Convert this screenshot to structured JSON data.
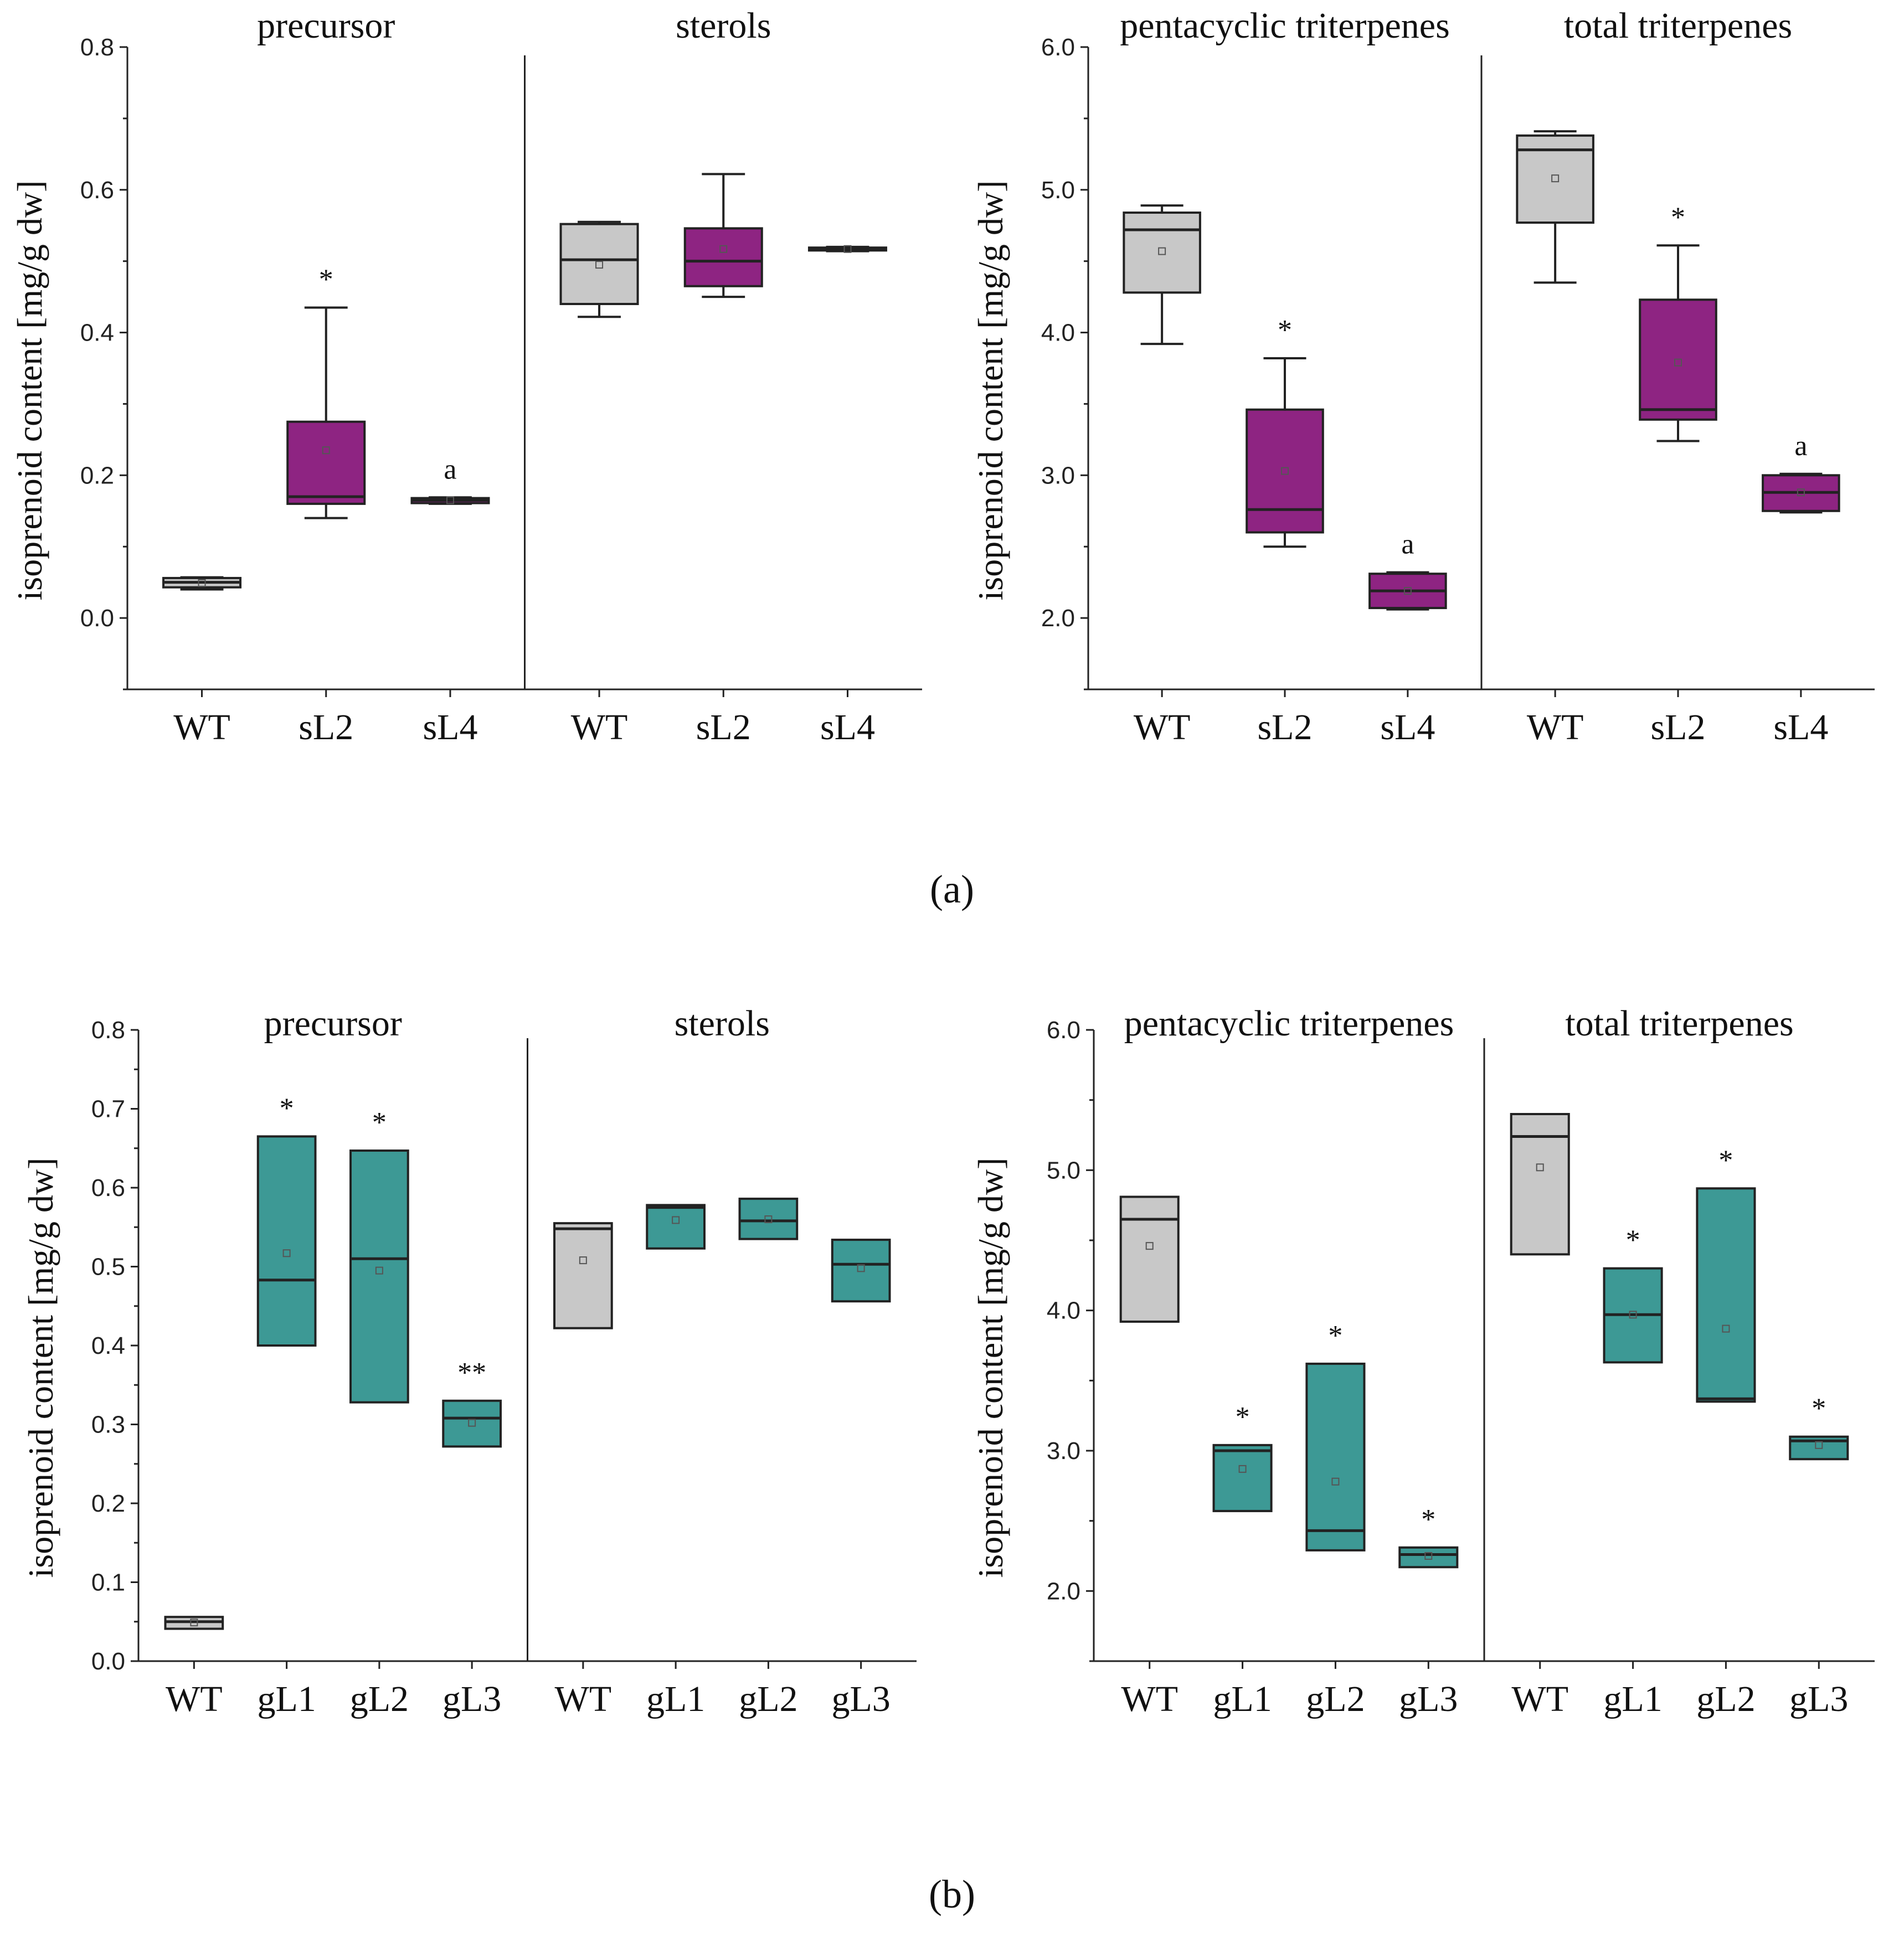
{
  "colors": {
    "wt": "#c8c8c8",
    "s": "#8e2482",
    "g": "#3d9995",
    "axis": "#222222"
  },
  "figure_labels": {
    "a": "(a)",
    "b": "(b)"
  },
  "chart_data": [
    {
      "type": "box",
      "id": "a-left",
      "ylabel": "isoprenoid content [mg/g dw]",
      "ylim": [
        -0.1,
        0.8
      ],
      "yticks": [
        "0.0",
        "0.2",
        "0.4",
        "0.6",
        "0.8"
      ],
      "ytick_values": [
        0.0,
        0.2,
        0.4,
        0.6,
        0.8
      ],
      "groups": [
        {
          "title": "precursor",
          "items": [
            {
              "label": "WT",
              "color": "wt",
              "whislo": 0.04,
              "q1": 0.043,
              "med": 0.05,
              "q3": 0.056,
              "whishi": 0.057,
              "mean": 0.049,
              "sig": ""
            },
            {
              "label": "sL2",
              "color": "s",
              "whislo": 0.14,
              "q1": 0.16,
              "med": 0.17,
              "q3": 0.275,
              "whishi": 0.435,
              "mean": 0.235,
              "sig": "*"
            },
            {
              "label": "sL4",
              "color": "s",
              "whislo": 0.16,
              "q1": 0.161,
              "med": 0.165,
              "q3": 0.168,
              "whishi": 0.169,
              "mean": 0.165,
              "sig": "a"
            }
          ]
        },
        {
          "title": "sterols",
          "items": [
            {
              "label": "WT",
              "color": "wt",
              "whislo": 0.422,
              "q1": 0.44,
              "med": 0.502,
              "q3": 0.552,
              "whishi": 0.555,
              "mean": 0.495,
              "sig": ""
            },
            {
              "label": "sL2",
              "color": "s",
              "whislo": 0.45,
              "q1": 0.465,
              "med": 0.5,
              "q3": 0.546,
              "whishi": 0.622,
              "mean": 0.517,
              "sig": ""
            },
            {
              "label": "sL4",
              "color": "s",
              "whislo": 0.514,
              "q1": 0.515,
              "med": 0.517,
              "q3": 0.519,
              "whishi": 0.52,
              "mean": 0.517,
              "sig": ""
            }
          ]
        }
      ]
    },
    {
      "type": "box",
      "id": "a-right",
      "ylabel": "isoprenoid content [mg/g dw]",
      "ylim": [
        1.5,
        6.0
      ],
      "yticks": [
        "2.0",
        "3.0",
        "4.0",
        "5.0",
        "6.0"
      ],
      "ytick_values": [
        2.0,
        3.0,
        4.0,
        5.0,
        6.0
      ],
      "groups": [
        {
          "title": "pentacyclic triterpenes",
          "items": [
            {
              "label": "WT",
              "color": "wt",
              "whislo": 3.92,
              "q1": 4.28,
              "med": 4.72,
              "q3": 4.84,
              "whishi": 4.89,
              "mean": 4.57,
              "sig": ""
            },
            {
              "label": "sL2",
              "color": "s",
              "whislo": 2.5,
              "q1": 2.6,
              "med": 2.76,
              "q3": 3.46,
              "whishi": 3.82,
              "mean": 3.03,
              "sig": "*"
            },
            {
              "label": "sL4",
              "color": "s",
              "whislo": 2.06,
              "q1": 2.07,
              "med": 2.19,
              "q3": 2.31,
              "whishi": 2.32,
              "mean": 2.19,
              "sig": "a"
            }
          ]
        },
        {
          "title": "total triterpenes",
          "items": [
            {
              "label": "WT",
              "color": "wt",
              "whislo": 4.35,
              "q1": 4.77,
              "med": 5.28,
              "q3": 5.38,
              "whishi": 5.41,
              "mean": 5.08,
              "sig": ""
            },
            {
              "label": "sL2",
              "color": "s",
              "whislo": 3.24,
              "q1": 3.39,
              "med": 3.46,
              "q3": 4.23,
              "whishi": 4.61,
              "mean": 3.79,
              "sig": "*"
            },
            {
              "label": "sL4",
              "color": "s",
              "whislo": 2.74,
              "q1": 2.75,
              "med": 2.88,
              "q3": 3.0,
              "whishi": 3.01,
              "mean": 2.88,
              "sig": "a"
            }
          ]
        }
      ]
    },
    {
      "type": "box",
      "id": "b-left",
      "ylabel": "isoprenoid content [mg/g dw]",
      "ylim": [
        0.0,
        0.8
      ],
      "yticks": [
        "0.0",
        "0.1",
        "0.2",
        "0.3",
        "0.4",
        "0.5",
        "0.6",
        "0.7",
        "0.8"
      ],
      "ytick_values": [
        0.0,
        0.1,
        0.2,
        0.3,
        0.4,
        0.5,
        0.6,
        0.7,
        0.8
      ],
      "groups": [
        {
          "title": "precursor",
          "items": [
            {
              "label": "WT",
              "color": "wt",
              "whislo": 0.041,
              "q1": 0.041,
              "med": 0.05,
              "q3": 0.056,
              "whishi": 0.056,
              "mean": 0.049,
              "sig": ""
            },
            {
              "label": "gL1",
              "color": "g",
              "whislo": 0.4,
              "q1": 0.4,
              "med": 0.483,
              "q3": 0.665,
              "whishi": 0.665,
              "mean": 0.517,
              "sig": "*"
            },
            {
              "label": "gL2",
              "color": "g",
              "whislo": 0.328,
              "q1": 0.328,
              "med": 0.51,
              "q3": 0.647,
              "whishi": 0.647,
              "mean": 0.495,
              "sig": "*"
            },
            {
              "label": "gL3",
              "color": "g",
              "whislo": 0.272,
              "q1": 0.272,
              "med": 0.308,
              "q3": 0.33,
              "whishi": 0.33,
              "mean": 0.302,
              "sig": "**"
            }
          ]
        },
        {
          "title": "sterols",
          "items": [
            {
              "label": "WT",
              "color": "wt",
              "whislo": 0.422,
              "q1": 0.422,
              "med": 0.548,
              "q3": 0.555,
              "whishi": 0.555,
              "mean": 0.508,
              "sig": ""
            },
            {
              "label": "gL1",
              "color": "g",
              "whislo": 0.523,
              "q1": 0.523,
              "med": 0.575,
              "q3": 0.578,
              "whishi": 0.578,
              "mean": 0.559,
              "sig": ""
            },
            {
              "label": "gL2",
              "color": "g",
              "whislo": 0.535,
              "q1": 0.535,
              "med": 0.558,
              "q3": 0.586,
              "whishi": 0.586,
              "mean": 0.56,
              "sig": ""
            },
            {
              "label": "gL3",
              "color": "g",
              "whislo": 0.456,
              "q1": 0.456,
              "med": 0.503,
              "q3": 0.534,
              "whishi": 0.534,
              "mean": 0.498,
              "sig": ""
            }
          ]
        }
      ]
    },
    {
      "type": "box",
      "id": "b-right",
      "ylabel": "isoprenoid content [mg/g dw]",
      "ylim": [
        1.5,
        6.0
      ],
      "yticks": [
        "2.0",
        "3.0",
        "4.0",
        "5.0",
        "6.0"
      ],
      "ytick_values": [
        2.0,
        3.0,
        4.0,
        5.0,
        6.0
      ],
      "groups": [
        {
          "title": "pentacyclic triterpenes",
          "items": [
            {
              "label": "WT",
              "color": "wt",
              "whislo": 3.92,
              "q1": 3.92,
              "med": 4.65,
              "q3": 4.81,
              "whishi": 4.81,
              "mean": 4.46,
              "sig": ""
            },
            {
              "label": "gL1",
              "color": "g",
              "whislo": 2.57,
              "q1": 2.57,
              "med": 3.0,
              "q3": 3.04,
              "whishi": 3.04,
              "mean": 2.87,
              "sig": "*"
            },
            {
              "label": "gL2",
              "color": "g",
              "whislo": 2.29,
              "q1": 2.29,
              "med": 2.43,
              "q3": 3.62,
              "whishi": 3.62,
              "mean": 2.78,
              "sig": "*"
            },
            {
              "label": "gL3",
              "color": "g",
              "whislo": 2.17,
              "q1": 2.17,
              "med": 2.26,
              "q3": 2.31,
              "whishi": 2.31,
              "mean": 2.25,
              "sig": "*"
            }
          ]
        },
        {
          "title": "total triterpenes",
          "items": [
            {
              "label": "WT",
              "color": "wt",
              "whislo": 4.4,
              "q1": 4.4,
              "med": 5.24,
              "q3": 5.4,
              "whishi": 5.4,
              "mean": 5.02,
              "sig": ""
            },
            {
              "label": "gL1",
              "color": "g",
              "whislo": 3.63,
              "q1": 3.63,
              "med": 3.97,
              "q3": 4.3,
              "whishi": 4.3,
              "mean": 3.97,
              "sig": "*"
            },
            {
              "label": "gL2",
              "color": "g",
              "whislo": 3.35,
              "q1": 3.35,
              "med": 3.37,
              "q3": 4.87,
              "whishi": 4.87,
              "mean": 3.87,
              "sig": "*"
            },
            {
              "label": "gL3",
              "color": "g",
              "whislo": 2.94,
              "q1": 2.94,
              "med": 3.07,
              "q3": 3.1,
              "whishi": 3.1,
              "mean": 3.04,
              "sig": "*"
            }
          ]
        }
      ]
    }
  ]
}
